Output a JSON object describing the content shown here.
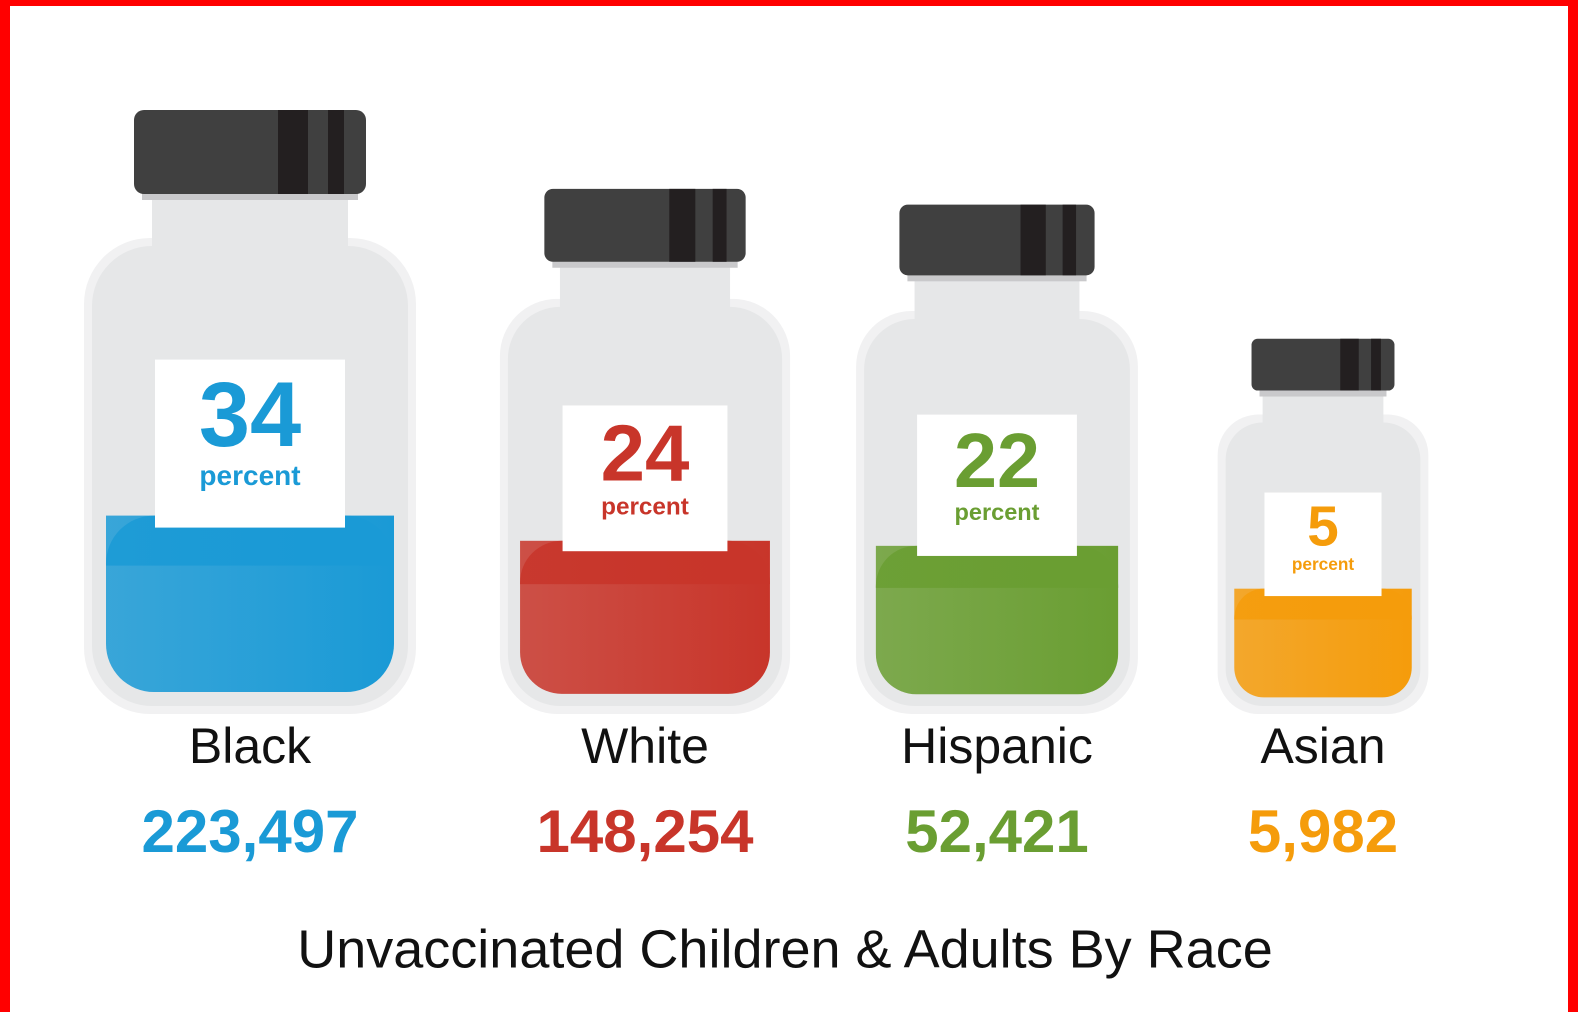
{
  "chart_data": {
    "type": "bottle",
    "title": "Unvaccinated Children & Adults By Race",
    "categories": [
      "Black",
      "White",
      "Hispanic",
      "Asian"
    ],
    "values": [
      34,
      24,
      22,
      5
    ],
    "unit_label": "percent",
    "counts": [
      223497,
      148254,
      52421,
      5982
    ],
    "count_labels": [
      "223,497",
      "148,254",
      "52,421",
      "5,982"
    ],
    "colors": [
      "#1a9ad6",
      "#c8352a",
      "#6a9e32",
      "#f59c0b"
    ]
  }
}
